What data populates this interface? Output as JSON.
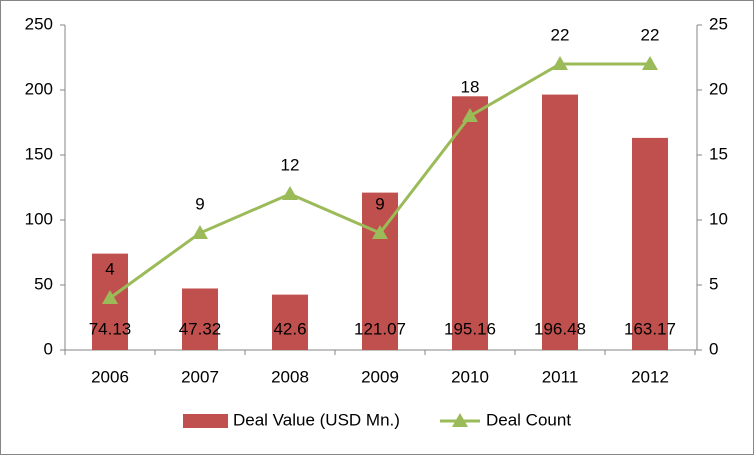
{
  "chart_data": {
    "type": "bar",
    "categories": [
      "2006",
      "2007",
      "2008",
      "2009",
      "2010",
      "2011",
      "2012"
    ],
    "series": [
      {
        "name": "Deal Value (USD Mn.)",
        "type": "bar",
        "color": "#c0504d",
        "values": [
          74.13,
          47.32,
          42.6,
          121.07,
          195.16,
          196.48,
          163.17
        ]
      },
      {
        "name": "Deal Count",
        "type": "line",
        "axis": "y2",
        "color": "#9bbb59",
        "values": [
          4,
          9,
          12,
          9,
          18,
          22,
          22
        ]
      }
    ],
    "ylim": [
      0,
      250
    ],
    "yticks": [
      0,
      50,
      100,
      150,
      200,
      250
    ],
    "y2lim": [
      0,
      25
    ],
    "y2ticks": [
      0,
      5,
      10,
      15,
      20,
      25
    ],
    "grid": false,
    "legend": "bottom"
  }
}
